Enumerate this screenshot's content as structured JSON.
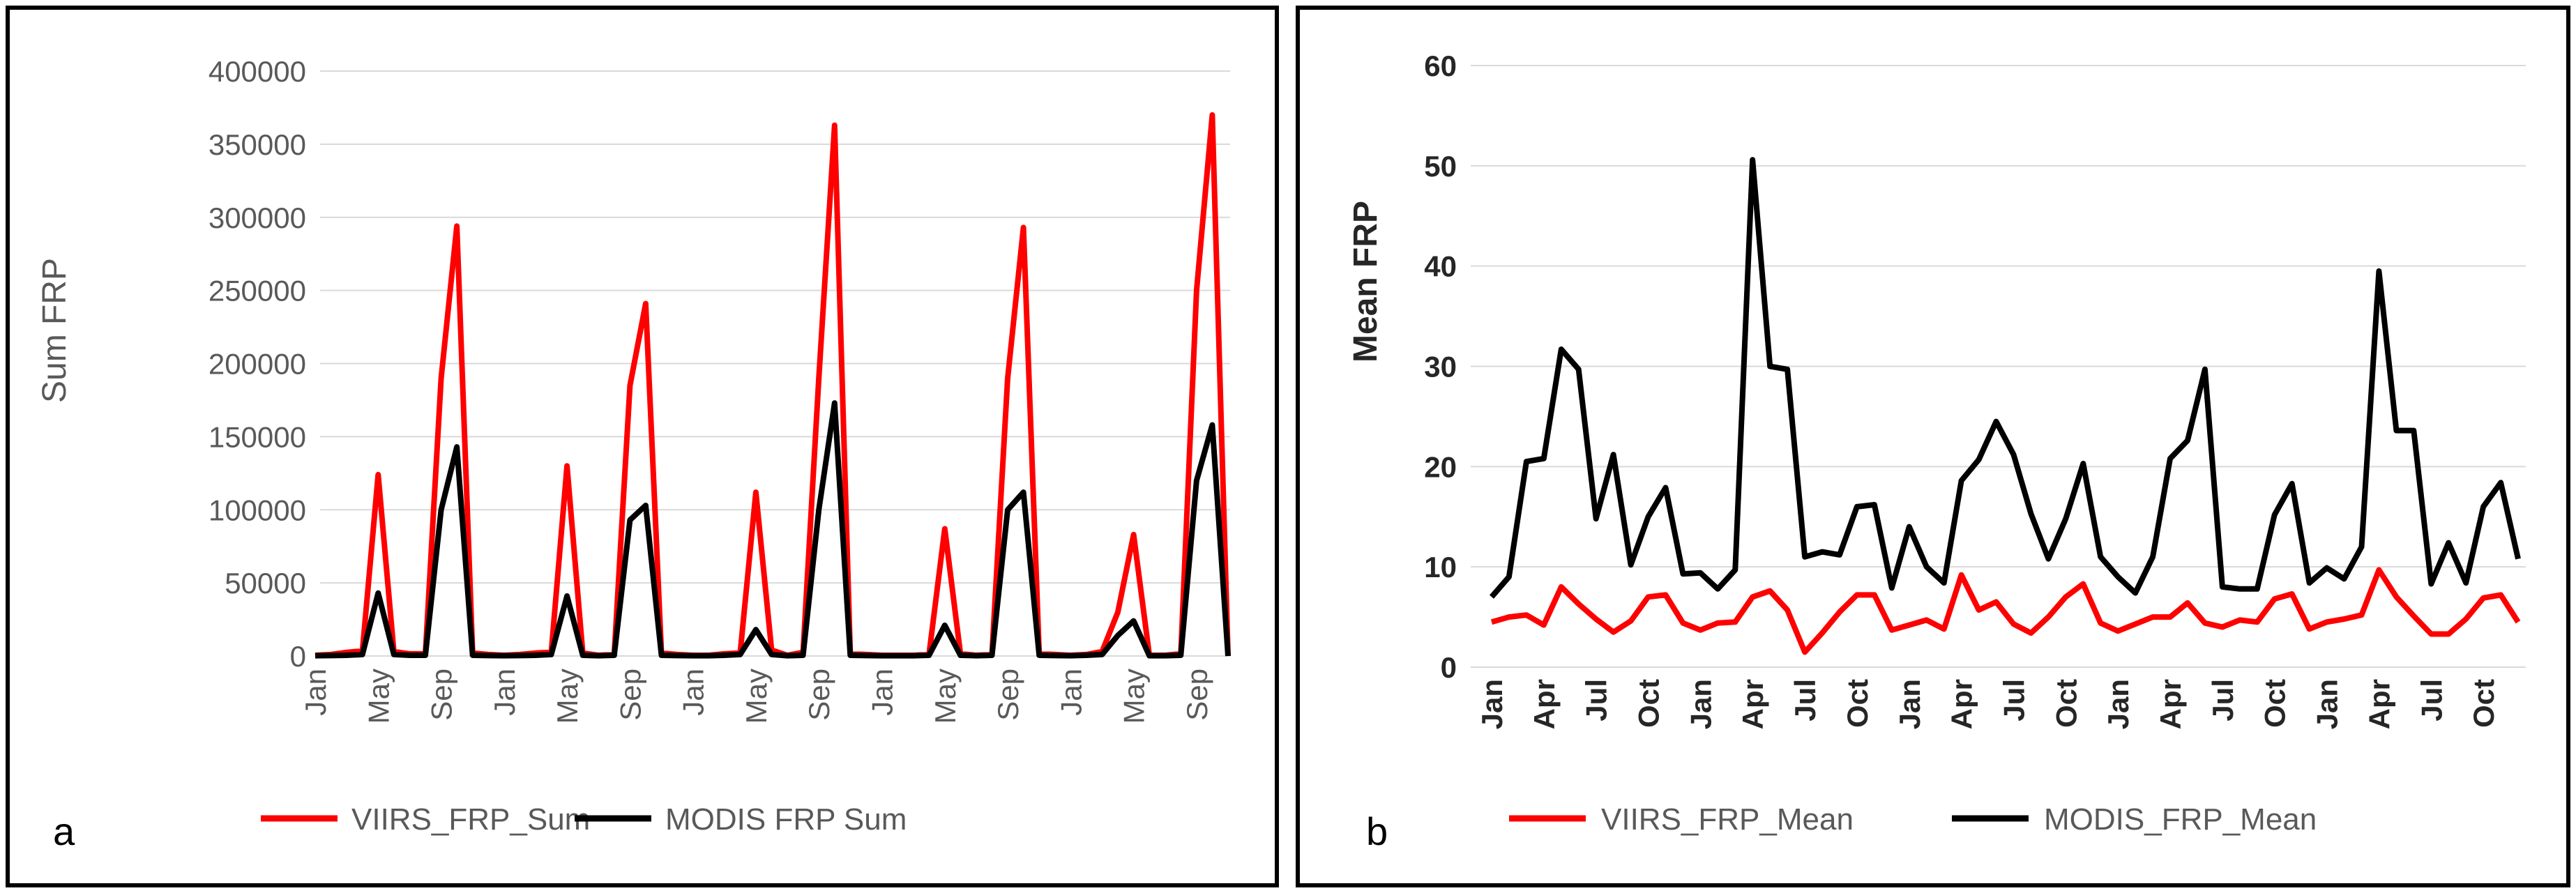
{
  "chart_data": [
    {
      "panel_label": "a",
      "type": "line",
      "title": "",
      "xlabel": "",
      "ylabel": "Sum FRP",
      "ylim": [
        0,
        400000
      ],
      "yticks": [
        "0",
        "50000",
        "100000",
        "150000",
        "200000",
        "250000",
        "300000",
        "350000",
        "400000"
      ],
      "xtick_labels": [
        "Jan",
        "May",
        "Sep",
        "Jan",
        "May",
        "Sep",
        "Jan",
        "May",
        "Sep",
        "Jan",
        "May",
        "Sep",
        "Jan",
        "May",
        "Sep"
      ],
      "xtick_step": 4,
      "grid": true,
      "legend_position": "bottom",
      "series": [
        {
          "name": "VIIRS_FRP_Sum",
          "color": "#ff0000",
          "values": [
            500,
            1000,
            2500,
            3500,
            124000,
            3000,
            1500,
            1500,
            190000,
            294000,
            2000,
            1000,
            500,
            1000,
            2000,
            2500,
            130000,
            2000,
            500,
            1000,
            185000,
            241000,
            2000,
            1000,
            500,
            500,
            1500,
            2000,
            112000,
            4000,
            500,
            2500,
            190000,
            363000,
            1500,
            1000,
            500,
            500,
            500,
            1000,
            87000,
            1500,
            500,
            1000,
            190000,
            293000,
            1500,
            1000,
            500,
            1000,
            3000,
            30000,
            83000,
            500,
            500,
            1500,
            250000,
            370000,
            0
          ]
        },
        {
          "name": "MODIS FRP Sum",
          "color": "#000000",
          "values": [
            200,
            300,
            500,
            1000,
            43000,
            1000,
            500,
            500,
            100000,
            143000,
            500,
            300,
            200,
            300,
            500,
            1000,
            41000,
            500,
            200,
            500,
            93000,
            103000,
            500,
            300,
            200,
            200,
            500,
            1000,
            18000,
            1000,
            200,
            500,
            100000,
            173000,
            500,
            300,
            200,
            200,
            200,
            500,
            21000,
            500,
            200,
            500,
            100000,
            112000,
            500,
            300,
            200,
            500,
            1000,
            14000,
            24000,
            200,
            200,
            500,
            120000,
            158000,
            0
          ]
        }
      ]
    },
    {
      "panel_label": "b",
      "type": "line",
      "title": "",
      "xlabel": "",
      "ylabel": "Mean FRP",
      "ylim": [
        0,
        60
      ],
      "yticks": [
        "0",
        "10",
        "20",
        "30",
        "40",
        "50",
        "60"
      ],
      "xtick_labels": [
        "Jan",
        "Apr",
        "Jul",
        "Oct",
        "Jan",
        "Apr",
        "Jul",
        "Oct",
        "Jan",
        "Apr",
        "Jul",
        "Oct",
        "Jan",
        "Apr",
        "Jul",
        "Oct",
        "Jan",
        "Apr",
        "Jul",
        "Oct"
      ],
      "xtick_step": 3,
      "grid": true,
      "legend_position": "bottom",
      "series": [
        {
          "name": "VIIRS_FRP_Mean",
          "color": "#ff0000",
          "values": [
            4.5,
            5,
            5.2,
            4.2,
            8,
            6.3,
            4.8,
            3.5,
            4.6,
            7,
            7.2,
            4.4,
            3.7,
            4.4,
            4.5,
            7,
            7.6,
            5.7,
            1.5,
            3.4,
            5.5,
            7.2,
            7.2,
            3.7,
            4.2,
            4.7,
            3.8,
            9.2,
            5.7,
            6.5,
            4.3,
            3.4,
            5,
            7,
            8.3,
            4.4,
            3.6,
            4.3,
            5,
            5,
            6.4,
            4.4,
            4,
            4.7,
            4.5,
            6.8,
            7.3,
            3.8,
            4.5,
            4.8,
            5.2,
            9.7,
            7,
            5.1,
            3.3,
            3.3,
            4.8,
            6.9,
            7.2,
            4.5
          ]
        },
        {
          "name": "MODIS_FRP_Mean",
          "color": "#000000",
          "values": [
            7,
            9,
            20.5,
            20.8,
            31.7,
            29.7,
            14.8,
            21.2,
            10.2,
            15,
            17.9,
            9.3,
            9.4,
            7.8,
            9.7,
            50.6,
            30,
            29.7,
            11,
            11.5,
            11.2,
            16,
            16.2,
            7.9,
            14,
            10,
            8.4,
            18.6,
            20.7,
            24.5,
            21.2,
            15.3,
            10.8,
            14.8,
            20.3,
            11,
            9,
            7.4,
            11,
            20.8,
            22.6,
            29.7,
            8,
            7.8,
            7.8,
            15.2,
            18.3,
            8.4,
            9.9,
            8.8,
            12,
            39.5,
            23.6,
            23.6,
            8.3,
            12.4,
            8.4,
            16,
            18.4,
            10.8
          ]
        }
      ]
    }
  ]
}
